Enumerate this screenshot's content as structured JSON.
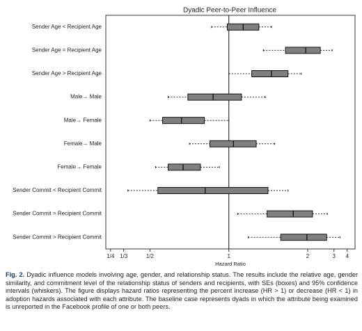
{
  "chart_data": {
    "type": "box",
    "title": "Dyadic Peer-to-Peer Influence",
    "x_label": "Hazard Ratio",
    "categories": [
      "Sender Age < Recipient Age",
      "Sender Age = Recipient Age",
      "Sender Age > Recipient Age",
      "Male→ Male",
      "Male→ Female",
      "Female→ Male",
      "Female→ Female",
      "Sender Commit < Recipient Commit",
      "Sender Commit = Recipient Commit",
      "Sender Commit > Recipient Commit"
    ],
    "whisker_low": [
      0.89,
      1.28,
      1.0,
      0.615,
      0.5,
      0.75,
      0.535,
      0.36,
      1.06,
      1.14
    ],
    "q1": [
      0.99,
      1.56,
      1.17,
      0.74,
      0.58,
      0.88,
      0.615,
      0.55,
      1.32,
      1.49
    ],
    "median": [
      1.1,
      1.95,
      1.37,
      0.9,
      0.7,
      1.03,
      0.71,
      0.85,
      1.69,
      1.98
    ],
    "q3": [
      1.235,
      2.38,
      1.6,
      1.087,
      0.845,
      1.21,
      0.82,
      1.33,
      2.13,
      2.63
    ],
    "whisker_high": [
      1.37,
      2.9,
      1.85,
      1.3,
      1.0,
      1.41,
      0.94,
      1.6,
      2.66,
      3.38
    ],
    "box_color": "#808080",
    "reference_line": 1,
    "xscale": "reciprocal-symmetric",
    "xlim": [
      0.22,
      5
    ],
    "xticks": [
      {
        "value": 0.25,
        "label": "1/4"
      },
      {
        "value": 0.3333,
        "label": "1/3"
      },
      {
        "value": 0.5,
        "label": "1/2"
      },
      1,
      2,
      3,
      4
    ]
  },
  "caption": {
    "label": "Fig. 2.",
    "text": "Dyadic influence models involving age, gender, and relationship status. The results include the relative age, gender similarity, and commitment level of the relationship status of senders and recipients, with SEs (boxes) and 95% confidence intervals (whiskers). The figure displays hazard ratios representing the percent increase (HR > 1) or decrease (HR < 1) in adoption hazards associated with each attribute. The baseline case represents dyads in which the attribute being examined is unreported in the Facebook profile of one or both peers."
  }
}
